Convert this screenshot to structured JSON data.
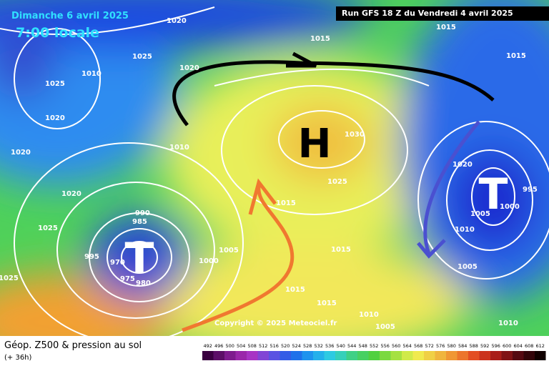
{
  "header": {
    "date": "Dimanche 6 avril 2025",
    "time": "7:00 locale",
    "run": "Run GFS 18 Z du Vendredi 4 avril 2025"
  },
  "footer": {
    "title": "Géop. Z500 & pression au sol",
    "lead": "(+ 36h)",
    "copyright": "Copyright © 2025 Meteociel.fr"
  },
  "scale": [
    492,
    496,
    500,
    504,
    508,
    512,
    516,
    520,
    524,
    528,
    532,
    536,
    540,
    544,
    548,
    552,
    556,
    560,
    564,
    568,
    572,
    576,
    580,
    584,
    588,
    592,
    596,
    600,
    604,
    608,
    612
  ],
  "centers": [
    "H",
    "T",
    "T"
  ],
  "isobars": [
    "1020",
    "1025",
    "1010",
    "1025",
    "1020",
    "1020",
    "1020",
    "1010",
    "1015",
    "1015",
    "1015",
    "1030",
    "1025",
    "1020",
    "995",
    "1000",
    "1005",
    "1010",
    "1005",
    "1020",
    "1025",
    "1025",
    "990",
    "985",
    "995",
    "970",
    "1005",
    "1000",
    "1015",
    "1015",
    "1015",
    "1015",
    "1010",
    "1005",
    "1010",
    "975",
    "980"
  ]
}
